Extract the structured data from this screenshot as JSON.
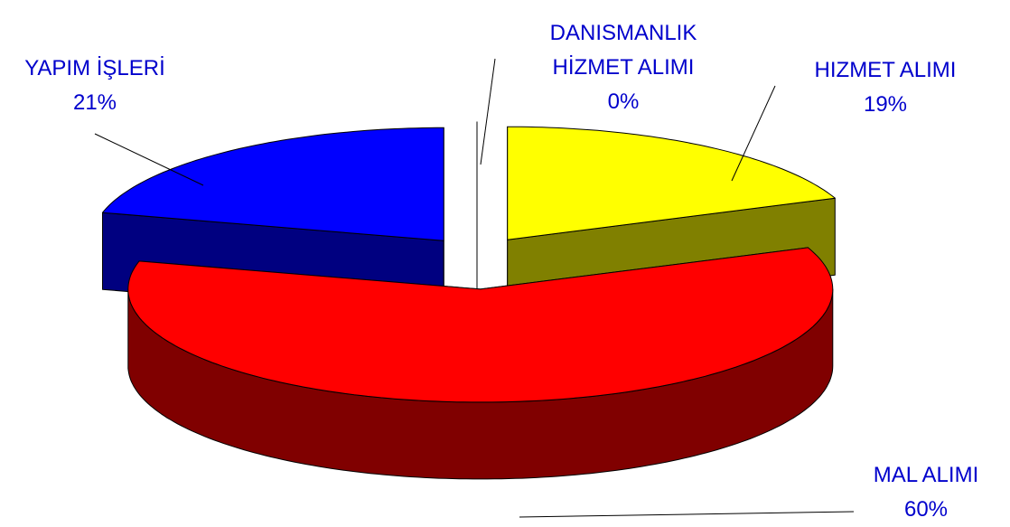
{
  "chart_data": {
    "type": "pie3d",
    "categories": [
      "DANISMANLIK HİZMET ALIMI",
      "HIZMET ALIMI",
      "MAL ALIMI",
      "YAPIM İŞLERİ"
    ],
    "values": [
      0,
      19,
      60,
      21
    ],
    "value_labels": [
      "0%",
      "19%",
      "60%",
      "21%"
    ],
    "colors": [
      "#9999ff",
      "#ffff00",
      "#ff0000",
      "#0000ff"
    ],
    "side_colors": [
      "#4c4c80",
      "#808000",
      "#800000",
      "#000080"
    ]
  }
}
